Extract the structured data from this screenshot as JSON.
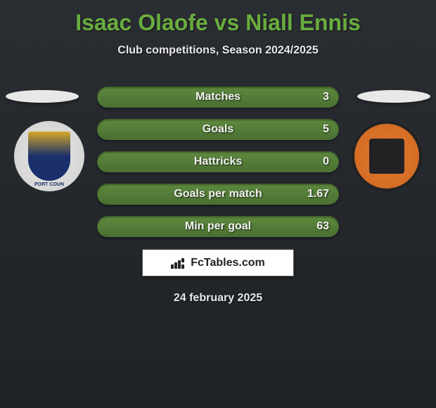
{
  "header": {
    "title": "Isaac Olaofe vs Niall Ennis",
    "subtitle": "Club competitions, Season 2024/2025"
  },
  "stats": [
    {
      "label": "Matches",
      "value": "3"
    },
    {
      "label": "Goals",
      "value": "5"
    },
    {
      "label": "Hattricks",
      "value": "0"
    },
    {
      "label": "Goals per match",
      "value": "1.67"
    },
    {
      "label": "Min per goal",
      "value": "63"
    }
  ],
  "brand": {
    "text": "FcTables.com"
  },
  "footer": {
    "date": "24 february 2025"
  },
  "colors": {
    "title_color": "#6aad3f",
    "pill_bg": "#5e8a3e",
    "text_light": "#e8e8e8"
  }
}
